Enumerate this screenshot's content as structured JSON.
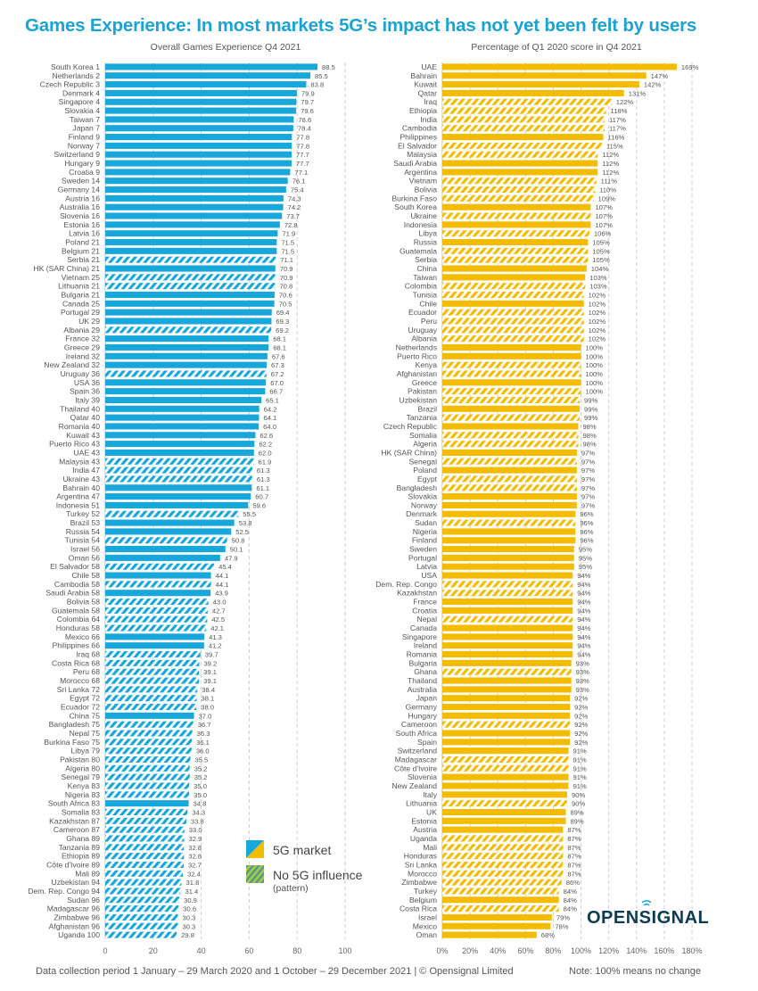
{
  "title": "Games Experience: In most markets 5G’s impact has not yet been felt by users",
  "footer_left": "Data collection period 1 January – 29 March 2020 and 1 October – 29 December 2021 | © Opensignal Limited",
  "footer_right": "Note: 100% means no change",
  "logo": "OPENSIGNAL",
  "legend": {
    "five_g": "5G market",
    "no_5g": "No 5G influence",
    "no_5g_note": "(pattern)"
  },
  "colors": {
    "blue": "#18a7db",
    "yellow": "#f3bc00",
    "title": "#1aa3d4",
    "logo": "#0e3b54"
  },
  "chart_data": [
    {
      "type": "bar",
      "orientation": "horizontal",
      "title": "Overall Games Experience Q4 2021",
      "xlabel": "",
      "ylabel": "",
      "xlim": [
        0,
        100
      ],
      "xticks": [
        0,
        20,
        40,
        60,
        80,
        100
      ],
      "xtick_labels": [
        "0",
        "20",
        "40",
        "60",
        "80",
        "100"
      ],
      "grid": true,
      "categories": [
        "South Korea 1",
        "Netherlands 2",
        "Czech Republic 3",
        "Denmark 4",
        "Singapore 4",
        "Slovakia 4",
        "Taiwan 7",
        "Japan 7",
        "Finland 9",
        "Norway 7",
        "Switzerland 9",
        "Hungary 9",
        "Croatia 9",
        "Sweden 14",
        "Germany 14",
        "Austria 16",
        "Australia 16",
        "Slovenia 16",
        "Estonia 16",
        "Latvia 16",
        "Poland 21",
        "Belgium 21",
        "Serbia 21",
        "HK (SAR China) 21",
        "Vietnam 25",
        "Lithuania 21",
        "Bulgaria 21",
        "Canada 25",
        "Portugal 29",
        "UK 29",
        "Albania 29",
        "France 32",
        "Greece 29",
        "Ireland 32",
        "New Zealand 32",
        "Uruguay 36",
        "USA 36",
        "Spain 36",
        "Italy 39",
        "Thailand 40",
        "Qatar 40",
        "Romania 40",
        "Kuwait 43",
        "Puerto Rico 43",
        "UAE 43",
        "Malaysia 43",
        "India 47",
        "Ukraine 43",
        "Bahrain 40",
        "Argentina 47",
        "Indonesia 51",
        "Turkey 52",
        "Brazil 53",
        "Russia 54",
        "Tunisia 54",
        "Israel 56",
        "Oman 56",
        "El Salvador 58",
        "Chile 58",
        "Cambodia 58",
        "Saudi Arabia 58",
        "Bolivia 58",
        "Guatemala 58",
        "Colombia 64",
        "Honduras 58",
        "Mexico 66",
        "Philippines 66",
        "Iraq 68",
        "Costa Rica 68",
        "Peru 68",
        "Morocco 68",
        "Sri Lanka 72",
        "Egypt 72",
        "Ecuador 72",
        "China 75",
        "Bangladesh 75",
        "Nepal 75",
        "Burkina Faso 75",
        "Libya 79",
        "Pakistan 80",
        "Algeria 80",
        "Senegal 79",
        "Kenya 83",
        "Nigeria 83",
        "South Africa 83",
        "Somalia 83",
        "Kazakhstan 87",
        "Cameroon 87",
        "Ghana 89",
        "Tanzania 89",
        "Ethiopia 89",
        "Côte d'Ivoire 89",
        "Mali 89",
        "Uzbekistan 94",
        "Dem. Rep. Congo 94",
        "Sudan 96",
        "Madagascar 96",
        "Zimbabwe 96",
        "Afghanistan 96",
        "Uganda 100"
      ],
      "values": [
        88.5,
        85.5,
        83.8,
        79.9,
        79.7,
        79.6,
        78.6,
        78.4,
        77.8,
        77.8,
        77.7,
        77.7,
        77.1,
        76.1,
        75.4,
        74.3,
        74.2,
        73.7,
        72.8,
        71.9,
        71.5,
        71.5,
        71.1,
        70.9,
        70.9,
        70.8,
        70.6,
        70.5,
        69.4,
        69.3,
        69.2,
        68.1,
        68.1,
        67.6,
        67.3,
        67.2,
        67.0,
        66.7,
        65.1,
        64.2,
        64.1,
        64.0,
        62.6,
        62.2,
        62.0,
        61.9,
        61.3,
        61.3,
        61.1,
        60.7,
        59.6,
        55.5,
        53.8,
        52.5,
        50.8,
        50.1,
        47.9,
        45.4,
        44.1,
        44.1,
        43.9,
        43.0,
        42.7,
        42.5,
        42.1,
        41.3,
        41.2,
        39.7,
        39.2,
        39.1,
        39.1,
        38.4,
        38.1,
        38.0,
        37.0,
        36.7,
        36.3,
        36.1,
        36.0,
        35.5,
        35.2,
        35.2,
        35.0,
        35.0,
        34.8,
        34.3,
        33.8,
        33.0,
        32.9,
        32.8,
        32.8,
        32.7,
        32.4,
        31.8,
        31.4,
        30.9,
        30.6,
        30.3,
        30.3,
        29.8
      ],
      "value_labels": [
        "88.5",
        "85.5",
        "83.8",
        "79.9",
        "79.7",
        "79.6",
        "78.6",
        "78.4",
        "77.8",
        "77.8",
        "77.7",
        "77.7",
        "77.1",
        "76.1",
        "75.4",
        "74.3",
        "74.2",
        "73.7",
        "72.8",
        "71.9",
        "71.5",
        "71.5",
        "71.1",
        "70.9",
        "70.9",
        "70.8",
        "70.6",
        "70.5",
        "69.4",
        "69.3",
        "69.2",
        "68.1",
        "68.1",
        "67.6",
        "67.3",
        "67.2",
        "67.0",
        "66.7",
        "65.1",
        "64.2",
        "64.1",
        "64.0",
        "62.6",
        "62.2",
        "62.0",
        "61.9",
        "61.3",
        "61.3",
        "61.1",
        "60.7",
        "59.6",
        "55.5",
        "53.8",
        "52.5",
        "50.8",
        "50.1",
        "47.9",
        "45.4",
        "44.1",
        "44.1",
        "43.9",
        "43.0",
        "42.7",
        "42.5",
        "42.1",
        "41.3",
        "41.2",
        "39.7",
        "39.2",
        "39.1",
        "39.1",
        "38.4",
        "38.1",
        "38.0",
        "37.0",
        "36.7",
        "36.3",
        "36.1",
        "36.0",
        "35.5",
        "35.2",
        "35.2",
        "35.0",
        "35.0",
        "34.8",
        "34.3",
        "33.8",
        "33.0",
        "32.9",
        "32.8",
        "32.8",
        "32.7",
        "32.4",
        "31.8",
        "31.4",
        "30.9",
        "30.6",
        "30.3",
        "30.3",
        "29.8"
      ],
      "five_g": [
        1,
        1,
        1,
        1,
        1,
        1,
        1,
        1,
        1,
        1,
        1,
        1,
        1,
        1,
        1,
        1,
        1,
        1,
        1,
        1,
        1,
        1,
        0,
        1,
        0,
        0,
        1,
        1,
        1,
        1,
        0,
        1,
        1,
        1,
        1,
        0,
        1,
        1,
        1,
        1,
        1,
        1,
        1,
        1,
        1,
        0,
        0,
        0,
        1,
        1,
        1,
        0,
        1,
        1,
        0,
        1,
        1,
        0,
        1,
        0,
        1,
        0,
        0,
        0,
        0,
        1,
        1,
        0,
        0,
        0,
        0,
        0,
        0,
        0,
        1,
        0,
        0,
        0,
        0,
        0,
        0,
        0,
        0,
        0,
        1,
        0,
        0,
        0,
        0,
        0,
        0,
        0,
        0,
        0,
        0,
        0,
        0,
        0,
        0,
        0
      ]
    },
    {
      "type": "bar",
      "orientation": "horizontal",
      "title": "Percentage of Q1 2020 score in Q4 2021",
      "xlabel": "",
      "ylabel": "",
      "xlim": [
        0,
        180
      ],
      "xticks": [
        0,
        20,
        40,
        60,
        80,
        100,
        120,
        140,
        160,
        180
      ],
      "xtick_labels": [
        "0%",
        "20%",
        "40%",
        "60%",
        "80%",
        "100%",
        "120%",
        "140%",
        "160%",
        "180%"
      ],
      "grid": true,
      "categories": [
        "UAE",
        "Bahrain",
        "Kuwait",
        "Qatar",
        "Iraq",
        "Ethiopia",
        "India",
        "Cambodia",
        "Philippines",
        "El Salvador",
        "Malaysia",
        "Saudi Arabia",
        "Argentina",
        "Vietnam",
        "Bolivia",
        "Burkina Faso",
        "South Korea",
        "Ukraine",
        "Indonesia",
        "Libya",
        "Russia",
        "Guatemala",
        "Serbia",
        "China",
        "Taiwan",
        "Colombia",
        "Tunisia",
        "Chile",
        "Ecuador",
        "Peru",
        "Uruguay",
        "Albania",
        "Netherlands",
        "Puerto Rico",
        "Kenya",
        "Afghanistan",
        "Greece",
        "Pakistan",
        "Uzbekistan",
        "Brazil",
        "Tanzania",
        "Czech Republic",
        "Somalia",
        "Algeria",
        "HK (SAR China)",
        "Senegal",
        "Poland",
        "Egypt",
        "Bangladesh",
        "Slovakia",
        "Norway",
        "Denmark",
        "Sudan",
        "Nigeria",
        "Finland",
        "Sweden",
        "Portugal",
        "Latvia",
        "USA",
        "Dem. Rep. Congo",
        "Kazakhstan",
        "France",
        "Croatia",
        "Nepal",
        "Canada",
        "Singapore",
        "Ireland",
        "Romania",
        "Bulgaria",
        "Ghana",
        "Thailand",
        "Australia",
        "Japan",
        "Germany",
        "Hungary",
        "Cameroon",
        "South Africa",
        "Spain",
        "Switzerland",
        "Madagascar",
        "Côte d'Ivoire",
        "Slovenia",
        "New Zealand",
        "Italy",
        "Lithuania",
        "UK",
        "Estonia",
        "Austria",
        "Uganda",
        "Mali",
        "Honduras",
        "Sri Lanka",
        "Morocco",
        "Zimbabwe",
        "Turkey",
        "Belgium",
        "Costa Rica",
        "Israel",
        "Mexico",
        "Oman"
      ],
      "values": [
        169,
        147,
        142,
        131,
        122,
        118,
        117,
        117,
        116,
        115,
        112,
        112,
        112,
        111,
        110,
        109,
        107,
        107,
        107,
        106,
        105,
        105,
        105,
        104,
        103,
        103,
        102,
        102,
        102,
        102,
        102,
        102,
        100,
        100,
        100,
        100,
        100,
        100,
        99,
        99,
        99,
        98,
        98,
        98,
        97,
        97,
        97,
        97,
        97,
        97,
        97,
        96,
        96,
        96,
        96,
        95,
        95,
        95,
        94,
        94,
        94,
        94,
        94,
        94,
        94,
        94,
        94,
        94,
        93,
        93,
        93,
        93,
        92,
        92,
        92,
        92,
        92,
        92,
        91,
        91,
        91,
        91,
        91,
        90,
        90,
        89,
        89,
        87,
        87,
        87,
        87,
        87,
        87,
        86,
        84,
        84,
        84,
        79,
        78,
        68
      ],
      "value_labels": [
        "169%",
        "147%",
        "142%",
        "131%",
        "122%",
        "118%",
        "117%",
        "117%",
        "116%",
        "115%",
        "112%",
        "112%",
        "112%",
        "111%",
        "110%",
        "109%",
        "107%",
        "107%",
        "107%",
        "106%",
        "105%",
        "105%",
        "105%",
        "104%",
        "103%",
        "103%",
        "102%",
        "102%",
        "102%",
        "102%",
        "102%",
        "102%",
        "100%",
        "100%",
        "100%",
        "100%",
        "100%",
        "100%",
        "99%",
        "99%",
        "99%",
        "98%",
        "98%",
        "98%",
        "97%",
        "97%",
        "97%",
        "97%",
        "97%",
        "97%",
        "97%",
        "96%",
        "96%",
        "96%",
        "96%",
        "95%",
        "95%",
        "95%",
        "94%",
        "94%",
        "94%",
        "94%",
        "94%",
        "94%",
        "94%",
        "94%",
        "94%",
        "94%",
        "93%",
        "93%",
        "93%",
        "93%",
        "92%",
        "92%",
        "92%",
        "92%",
        "92%",
        "92%",
        "91%",
        "91%",
        "91%",
        "91%",
        "91%",
        "90%",
        "90%",
        "89%",
        "89%",
        "87%",
        "87%",
        "87%",
        "87%",
        "87%",
        "87%",
        "86%",
        "84%",
        "84%",
        "84%",
        "79%",
        "78%",
        "68%"
      ],
      "five_g": [
        1,
        1,
        1,
        1,
        0,
        0,
        0,
        0,
        1,
        0,
        0,
        1,
        1,
        0,
        0,
        0,
        1,
        0,
        1,
        0,
        1,
        0,
        0,
        1,
        1,
        0,
        0,
        1,
        0,
        0,
        0,
        0,
        1,
        1,
        0,
        0,
        1,
        0,
        0,
        1,
        0,
        1,
        0,
        0,
        1,
        0,
        1,
        0,
        0,
        1,
        1,
        1,
        0,
        1,
        1,
        1,
        1,
        1,
        1,
        0,
        0,
        1,
        1,
        0,
        1,
        1,
        1,
        1,
        1,
        0,
        1,
        1,
        1,
        1,
        1,
        0,
        1,
        1,
        1,
        0,
        0,
        1,
        1,
        1,
        0,
        1,
        1,
        1,
        0,
        0,
        0,
        0,
        0,
        0,
        0,
        1,
        0,
        1,
        1,
        1
      ]
    }
  ]
}
